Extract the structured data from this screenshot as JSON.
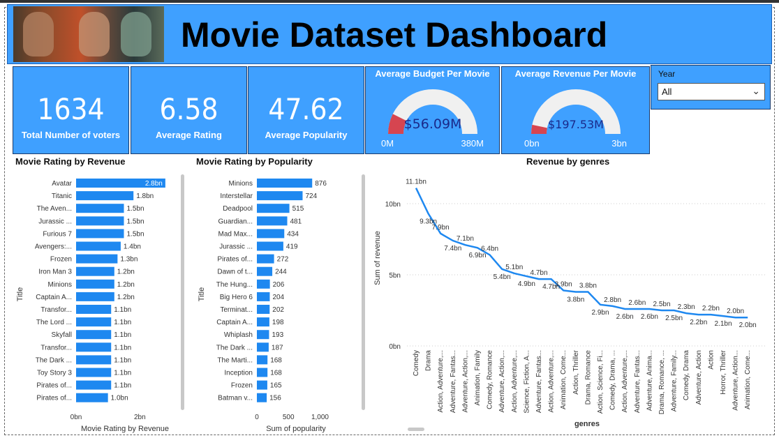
{
  "header": {
    "title": "Movie Dataset Dashboard"
  },
  "kpis": [
    {
      "value": "1634",
      "label": "Total Number of voters"
    },
    {
      "value": "6.58",
      "label": "Average Rating"
    },
    {
      "value": "47.62",
      "label": "Average Popularity"
    }
  ],
  "gauges": [
    {
      "title": "Average Budget Per Movie",
      "value_text": "$56.09M",
      "min": "0M",
      "max": "380M",
      "fraction": 0.1476
    },
    {
      "title": "Average Revenue Per Movie",
      "value_text": "$197.53M",
      "min": "0bn",
      "max": "3bn",
      "fraction": 0.0658
    }
  ],
  "filter": {
    "label": "Year",
    "selected": "All"
  },
  "colors": {
    "panel": "#3FA0FF",
    "bar": "#1E88F0",
    "gauge_fill": "#D64550",
    "gauge_track": "#F0F0F0",
    "gauge_text": "#1a2a8a"
  },
  "chart_data": [
    {
      "type": "bar",
      "title": "Movie Rating by Revenue",
      "ylabel": "Title",
      "xlabel": "Movie Rating by Revenue",
      "categories": [
        "Avatar",
        "Titanic",
        "The Aven...",
        "Jurassic ...",
        "Furious 7",
        "Avengers:...",
        "Frozen",
        "Iron Man 3",
        "Minions",
        "Captain A...",
        "Transfor...",
        "The Lord ...",
        "Skyfall",
        "Transfor...",
        "The Dark ...",
        "Toy Story 3",
        "Pirates of...",
        "Pirates of..."
      ],
      "values": [
        2.8,
        1.8,
        1.5,
        1.5,
        1.5,
        1.4,
        1.3,
        1.2,
        1.2,
        1.2,
        1.1,
        1.1,
        1.1,
        1.1,
        1.1,
        1.1,
        1.1,
        1.0
      ],
      "value_labels": [
        "2.8bn",
        "1.8bn",
        "1.5bn",
        "1.5bn",
        "1.5bn",
        "1.4bn",
        "1.3bn",
        "1.2bn",
        "1.2bn",
        "1.2bn",
        "1.1bn",
        "1.1bn",
        "1.1bn",
        "1.1bn",
        "1.1bn",
        "1.1bn",
        "1.1bn",
        "1.0bn"
      ],
      "xlim": [
        0,
        3
      ],
      "xticks": [
        "0bn",
        "2bn"
      ]
    },
    {
      "type": "bar",
      "title": "Movie Rating by Popularity",
      "ylabel": "Title",
      "xlabel": "Sum of popularity",
      "categories": [
        "Minions",
        "Interstellar",
        "Deadpool",
        "Guardian...",
        "Mad Max...",
        "Jurassic ...",
        "Pirates of...",
        "Dawn of t...",
        "The Hung...",
        "Big Hero 6",
        "Terminat...",
        "Captain A...",
        "Whiplash",
        "The Dark ...",
        "The Marti...",
        "Inception",
        "Frozen",
        "Batman v..."
      ],
      "values": [
        876,
        724,
        515,
        481,
        434,
        419,
        272,
        244,
        206,
        204,
        202,
        198,
        193,
        187,
        168,
        168,
        165,
        156
      ],
      "xlim": [
        0,
        1100
      ],
      "xticks": [
        "0",
        "500",
        "1,000"
      ]
    },
    {
      "type": "line",
      "title": "Revenue by genres",
      "xlabel": "genres",
      "ylabel": "Sum of revenue",
      "x": [
        "Comedy",
        "Drama",
        "Action, Adventure,...",
        "Adventure, Fantas...",
        "Adventure, Action,...",
        "Animation, Family",
        "Comedy, Romance",
        "Adventure, Action,...",
        "Action, Adventure,...",
        "Science, Fiction, A...",
        "Adventure, Fantas...",
        "Action, Adventure,...",
        "Animation, Come...",
        "Action, Thriller",
        "Drama, Romance",
        "Action, Science, Fi...",
        "Comedy, Drama, ...",
        "Action, Adventure,...",
        "Adventure, Fantas...",
        "Adventure, Anima...",
        "Drama, Romance, ...",
        "Adventure, Family...",
        "Comedy, Drama",
        "Adventure, Action",
        "Action",
        "Horror, Thriller",
        "Adventure, Action...",
        "Animation, Come..."
      ],
      "values": [
        11.1,
        9.3,
        7.9,
        7.4,
        7.1,
        6.9,
        6.4,
        5.4,
        5.1,
        4.9,
        4.7,
        4.7,
        3.9,
        3.8,
        3.8,
        2.9,
        2.8,
        2.6,
        2.6,
        2.6,
        2.5,
        2.5,
        2.3,
        2.2,
        2.2,
        2.1,
        2.0,
        2.0
      ],
      "value_labels": [
        "11.1bn",
        "9.3bn",
        "7.9bn",
        "7.4bn",
        "7.1bn",
        "6.9bn",
        "6.4bn",
        "5.4bn",
        "5.1bn",
        "4.9bn",
        "4.7bn",
        "4.7bn",
        "3.9bn",
        "3.8bn",
        "3.8bn",
        "2.9bn",
        "2.8bn",
        "2.6bn",
        "2.6bn",
        "2.6bn",
        "2.5bn",
        "2.5bn",
        "2.3bn",
        "2.2bn",
        "2.2bn",
        "2.1bn",
        "2.0bn",
        "2.0bn"
      ],
      "ylim": [
        0,
        12
      ],
      "yticks": [
        "0bn",
        "5bn",
        "10bn"
      ]
    }
  ]
}
